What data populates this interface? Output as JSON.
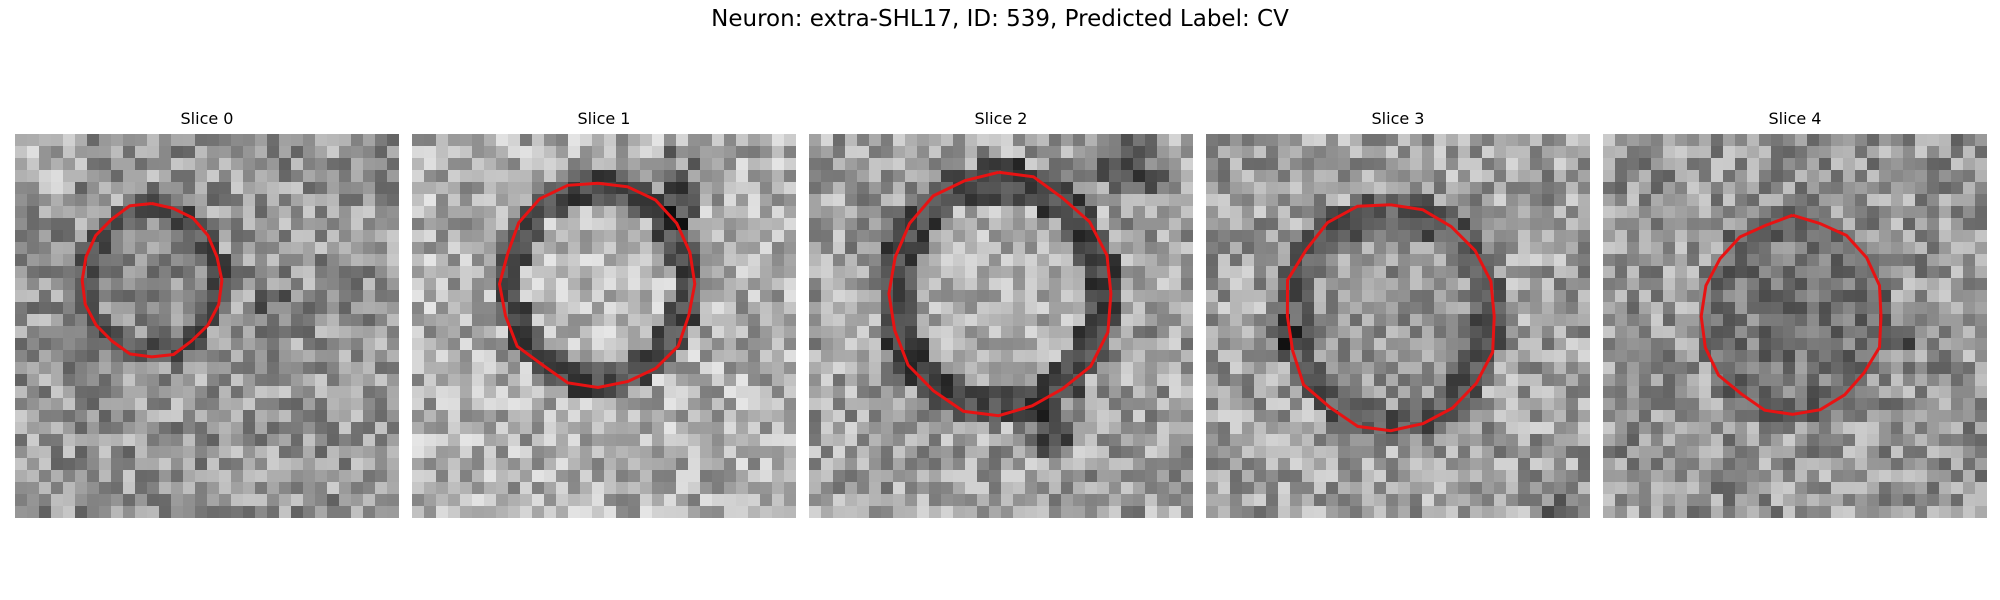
{
  "figure": {
    "title": "Neuron: extra-SHL17, ID: 539, Predicted Label: CV"
  },
  "colors": {
    "contour": "#e81313",
    "background": "#ffffff"
  },
  "panels": [
    {
      "title": "Slice 0"
    },
    {
      "title": "Slice 1"
    },
    {
      "title": "Slice 2"
    },
    {
      "title": "Slice 3"
    },
    {
      "title": "Slice 4"
    }
  ]
}
